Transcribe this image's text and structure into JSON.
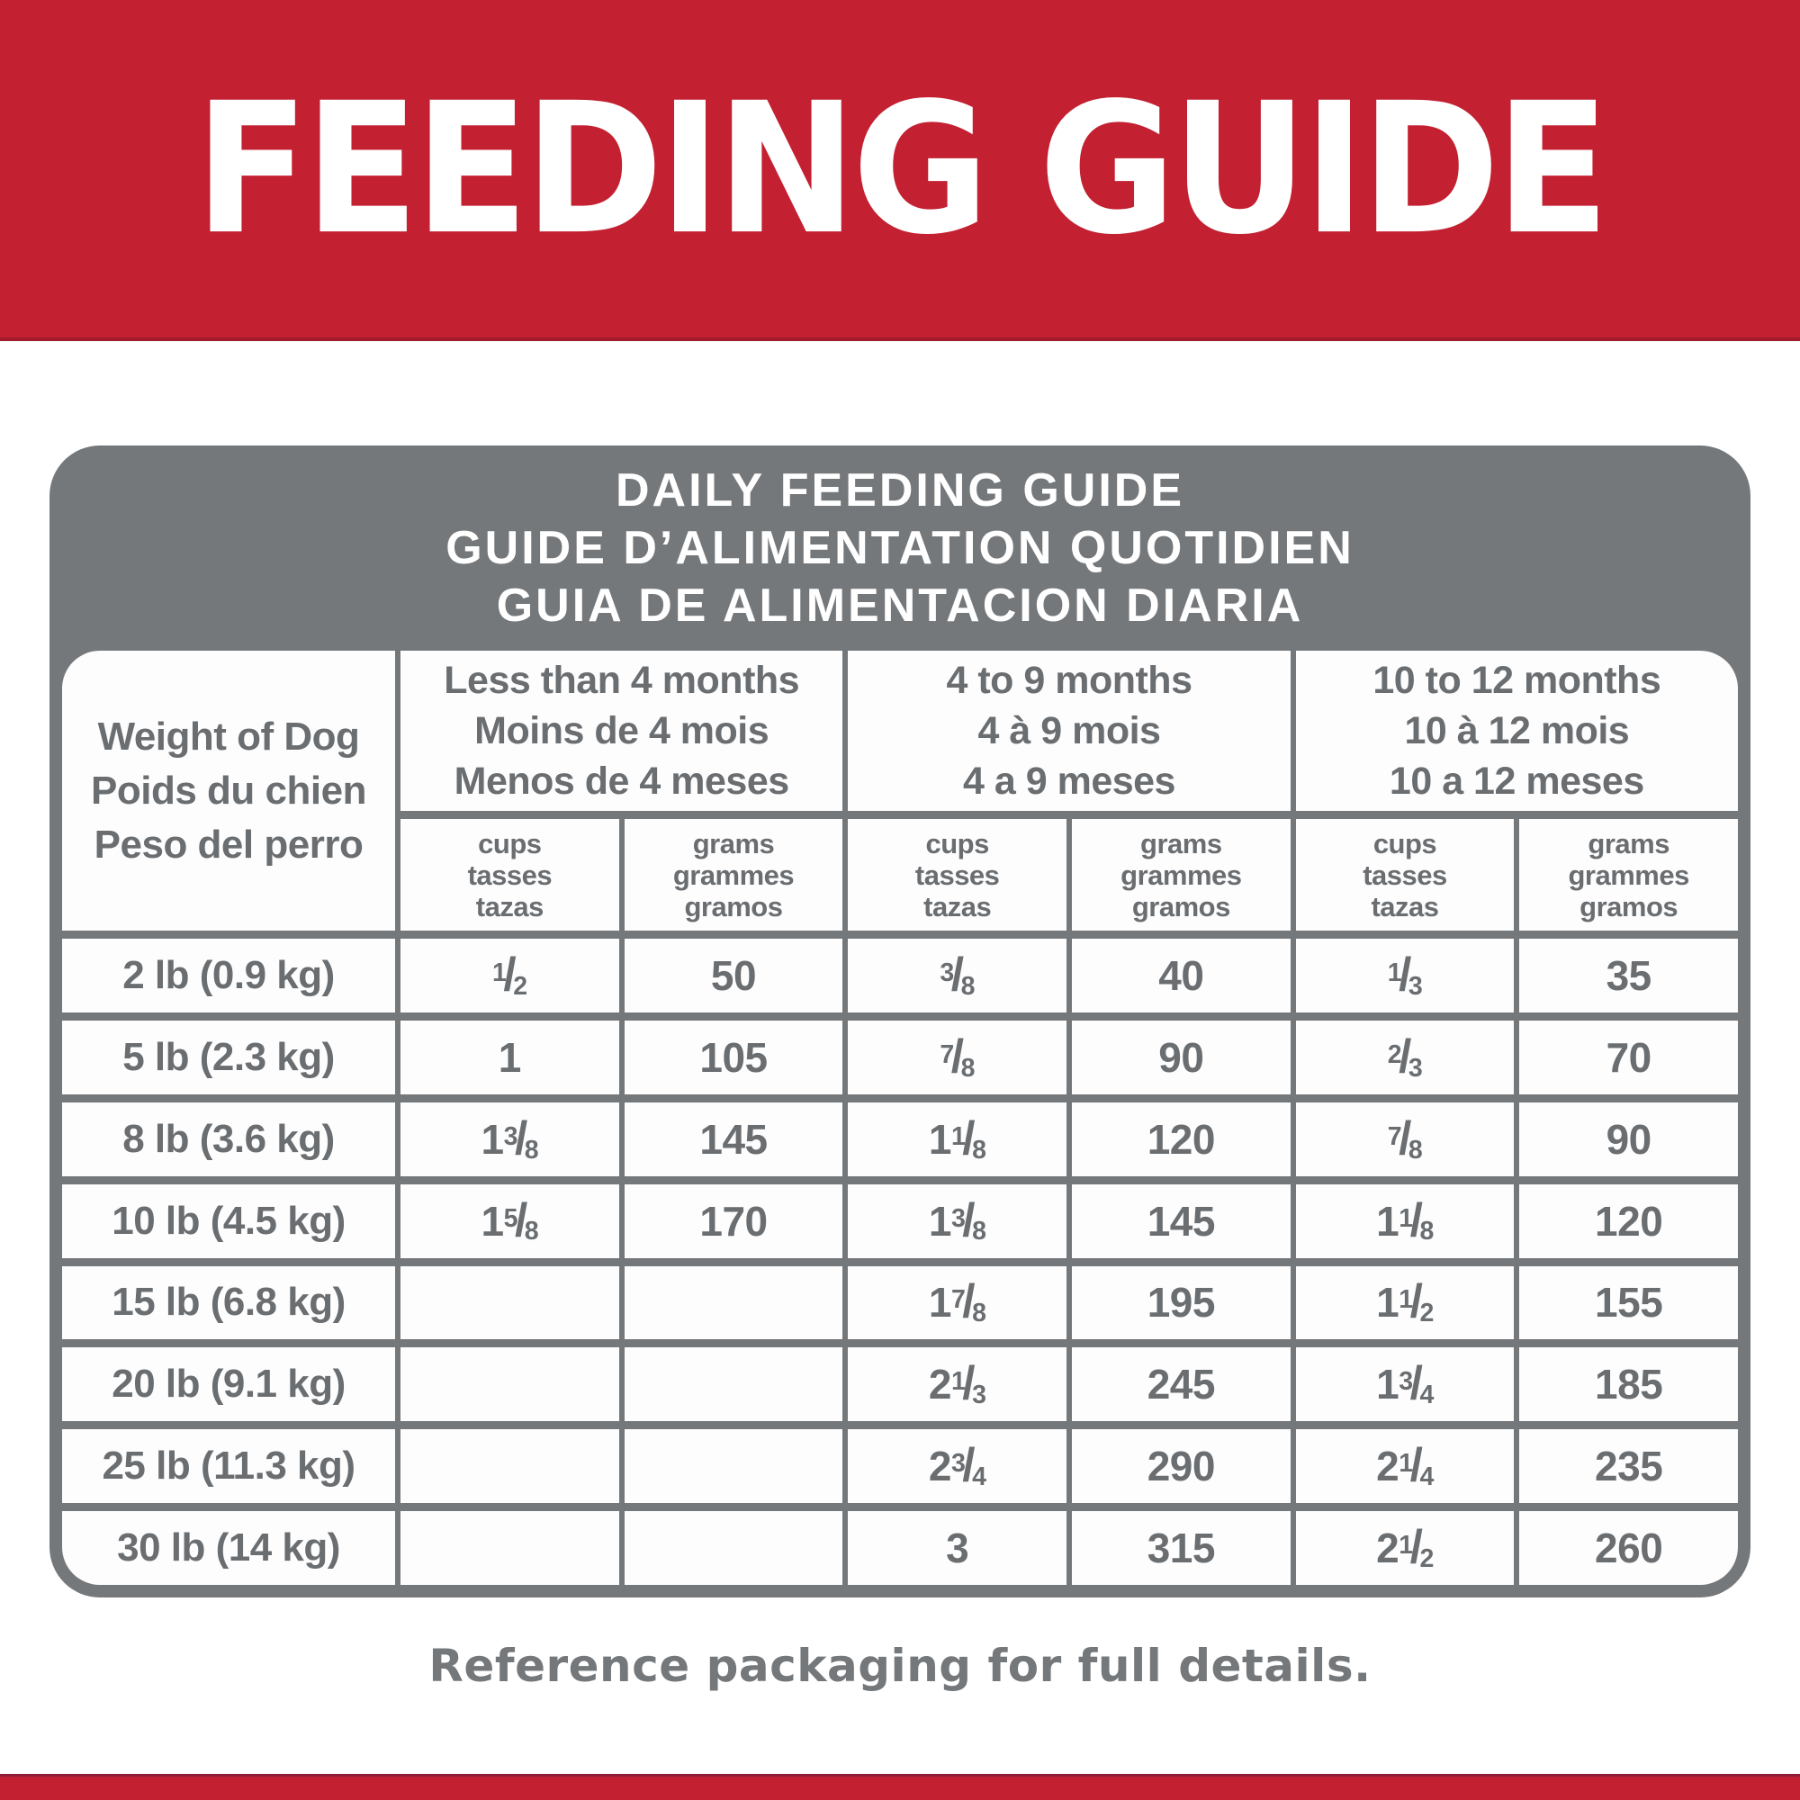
{
  "banner": {
    "title": "FEEDING GUIDE"
  },
  "colors": {
    "brand_red": "#C32031",
    "table_gray": "#75787B",
    "text_gray": "#6A6E71",
    "cell_white": "#FDFDFE"
  },
  "table": {
    "title_lines": [
      "DAILY FEEDING GUIDE",
      "GUIDE D’ALIMENTATION QUOTIDIEN",
      "GUIA DE ALIMENTACION DIARIA"
    ],
    "weight_header_lines": [
      "Weight of Dog",
      "Poids du chien",
      "Peso del perro"
    ],
    "age_groups": [
      {
        "lines": [
          "Less than 4 months",
          "Moins de 4 mois",
          "Menos de 4 meses"
        ]
      },
      {
        "lines": [
          "4 to 9 months",
          "4 à 9 mois",
          "4 a 9 meses"
        ]
      },
      {
        "lines": [
          "10 to 12 months",
          "10 à 12 mois",
          "10 a 12 meses"
        ]
      }
    ],
    "unit_headers": {
      "cups": [
        "cups",
        "tasses",
        "tazas"
      ],
      "grams": [
        "grams",
        "grammes",
        "gramos"
      ]
    },
    "rows": [
      {
        "weight": "2 lb (0.9 kg)",
        "cells": [
          "1/2",
          "50",
          "3/8",
          "40",
          "1/3",
          "35"
        ]
      },
      {
        "weight": "5 lb (2.3 kg)",
        "cells": [
          "1",
          "105",
          "7/8",
          "90",
          "2/3",
          "70"
        ]
      },
      {
        "weight": "8 lb (3.6 kg)",
        "cells": [
          "1 3/8",
          "145",
          "1 1/8",
          "120",
          "7/8",
          "90"
        ]
      },
      {
        "weight": "10 lb (4.5 kg)",
        "cells": [
          "1 5/8",
          "170",
          "1 3/8",
          "145",
          "1 1/8",
          "120"
        ]
      },
      {
        "weight": "15 lb (6.8 kg)",
        "cells": [
          "",
          "",
          "1 7/8",
          "195",
          "1 1/2",
          "155"
        ]
      },
      {
        "weight": "20 lb (9.1 kg)",
        "cells": [
          "",
          "",
          "2 1/3",
          "245",
          "1 3/4",
          "185"
        ]
      },
      {
        "weight": "25 lb (11.3 kg)",
        "cells": [
          "",
          "",
          "2 3/4",
          "290",
          "2 1/4",
          "235"
        ]
      },
      {
        "weight": "30 lb (14 kg)",
        "cells": [
          "",
          "",
          "3",
          "315",
          "2 1/2",
          "260"
        ]
      }
    ]
  },
  "footer": {
    "note": "Reference packaging for full details."
  }
}
